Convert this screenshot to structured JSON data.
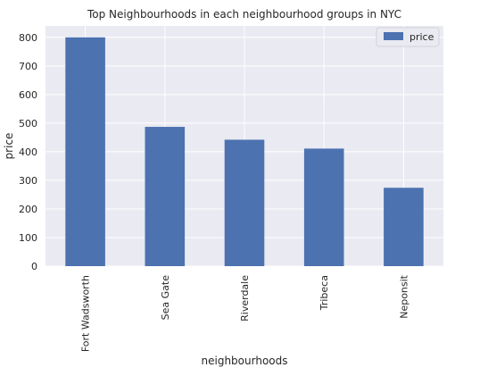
{
  "chart_data": {
    "type": "bar",
    "title": "Top Neighbourhoods in each neighbourhood groups in NYC",
    "xlabel": "neighbourhoods",
    "ylabel": "price",
    "categories": [
      "Fort Wadsworth",
      "Sea Gate",
      "Riverdale",
      "Tribeca",
      "Neponsit"
    ],
    "series": [
      {
        "name": "price",
        "values": [
          800,
          487,
          442,
          411,
          274
        ]
      }
    ],
    "ylim": [
      0,
      840
    ],
    "yticks": [
      0,
      100,
      200,
      300,
      400,
      500,
      600,
      700,
      800
    ],
    "grid": true,
    "legend": "top-right",
    "colors": {
      "bar": "#4c72b0",
      "plot_background": "#eaeaf2",
      "grid": "#ffffff"
    }
  }
}
